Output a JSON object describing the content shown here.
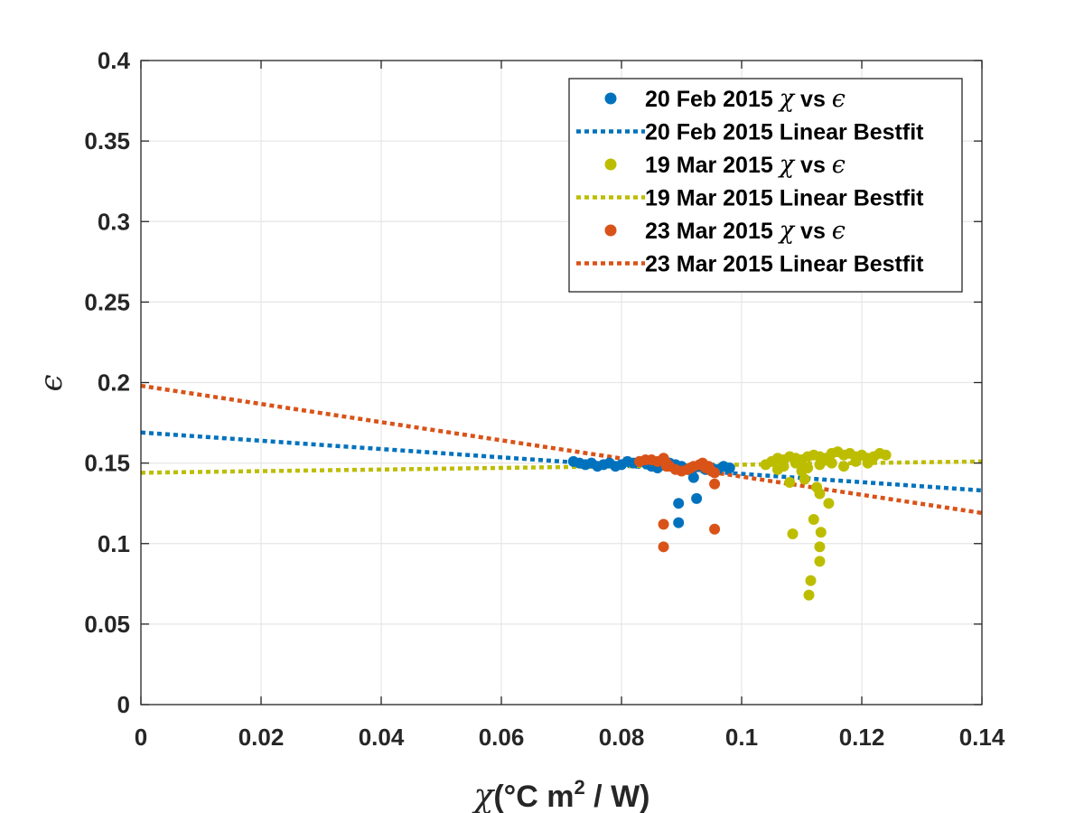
{
  "chart_data": {
    "type": "scatter",
    "title": "",
    "xlabel": {
      "symbol": "χ",
      "text": "(°C m",
      "superscript": "2",
      "text_end": " / W)"
    },
    "ylabel": "ϵ",
    "xlim": [
      0,
      0.14
    ],
    "ylim": [
      0,
      0.4
    ],
    "x_ticks": [
      0,
      0.02,
      0.04,
      0.06,
      0.08,
      0.1,
      0.12,
      0.14
    ],
    "x_tick_labels": [
      "0",
      "0.02",
      "0.04",
      "0.06",
      "0.08",
      "0.1",
      "0.12",
      "0.14"
    ],
    "y_ticks": [
      0,
      0.05,
      0.1,
      0.15,
      0.2,
      0.25,
      0.3,
      0.35,
      0.4
    ],
    "y_tick_labels": [
      "0",
      "0.05",
      "0.1",
      "0.15",
      "0.2",
      "0.25",
      "0.3",
      "0.35",
      "0.4"
    ],
    "grid": true,
    "legend_position": "top-right",
    "legend": [
      {
        "kind": "marker",
        "color": "#0072bd",
        "prefix": "20 Feb 2015 ",
        "symbol": "χ",
        "mid": " vs ",
        "symbol2": "ϵ"
      },
      {
        "kind": "line",
        "color": "#0072bd",
        "label": "20 Feb 2015 Linear Bestfit"
      },
      {
        "kind": "marker",
        "color": "#bdbd00",
        "prefix": "19 Mar 2015 ",
        "symbol": "χ",
        "mid": " vs ",
        "symbol2": "ϵ"
      },
      {
        "kind": "line",
        "color": "#bdbd00",
        "label": "19 Mar 2015 Linear Bestfit"
      },
      {
        "kind": "marker",
        "color": "#d95319",
        "prefix": "23 Mar 2015 ",
        "symbol": "χ",
        "mid": " vs ",
        "symbol2": "ϵ"
      },
      {
        "kind": "line",
        "color": "#d95319",
        "label": "23 Mar 2015 Linear Bestfit"
      }
    ],
    "series": [
      {
        "name": "20 Feb 2015 χ vs ϵ",
        "kind": "scatter",
        "color": "#0072bd",
        "points": [
          [
            0.072,
            0.151
          ],
          [
            0.073,
            0.15
          ],
          [
            0.074,
            0.149
          ],
          [
            0.075,
            0.15
          ],
          [
            0.076,
            0.148
          ],
          [
            0.077,
            0.149
          ],
          [
            0.078,
            0.15
          ],
          [
            0.079,
            0.148
          ],
          [
            0.08,
            0.149
          ],
          [
            0.081,
            0.151
          ],
          [
            0.082,
            0.15
          ],
          [
            0.083,
            0.151
          ],
          [
            0.084,
            0.15
          ],
          [
            0.085,
            0.148
          ],
          [
            0.086,
            0.147
          ],
          [
            0.087,
            0.149
          ],
          [
            0.088,
            0.15
          ],
          [
            0.089,
            0.149
          ],
          [
            0.09,
            0.148
          ],
          [
            0.091,
            0.146
          ],
          [
            0.092,
            0.147
          ],
          [
            0.093,
            0.148
          ],
          [
            0.094,
            0.146
          ],
          [
            0.095,
            0.147
          ],
          [
            0.096,
            0.146
          ],
          [
            0.097,
            0.148
          ],
          [
            0.098,
            0.147
          ],
          [
            0.0895,
            0.125
          ],
          [
            0.0925,
            0.128
          ],
          [
            0.0895,
            0.113
          ],
          [
            0.092,
            0.141
          ]
        ]
      },
      {
        "name": "19 Mar 2015 χ vs ϵ",
        "kind": "scatter",
        "color": "#bdbd00",
        "points": [
          [
            0.104,
            0.149
          ],
          [
            0.105,
            0.151
          ],
          [
            0.106,
            0.153
          ],
          [
            0.107,
            0.152
          ],
          [
            0.108,
            0.154
          ],
          [
            0.109,
            0.153
          ],
          [
            0.11,
            0.152
          ],
          [
            0.111,
            0.154
          ],
          [
            0.112,
            0.155
          ],
          [
            0.113,
            0.154
          ],
          [
            0.114,
            0.153
          ],
          [
            0.115,
            0.156
          ],
          [
            0.116,
            0.157
          ],
          [
            0.117,
            0.155
          ],
          [
            0.118,
            0.156
          ],
          [
            0.119,
            0.154
          ],
          [
            0.12,
            0.155
          ],
          [
            0.121,
            0.153
          ],
          [
            0.122,
            0.154
          ],
          [
            0.123,
            0.156
          ],
          [
            0.124,
            0.155
          ],
          [
            0.107,
            0.148
          ],
          [
            0.109,
            0.15
          ],
          [
            0.111,
            0.147
          ],
          [
            0.113,
            0.149
          ],
          [
            0.115,
            0.15
          ],
          [
            0.117,
            0.148
          ],
          [
            0.119,
            0.151
          ],
          [
            0.121,
            0.15
          ],
          [
            0.106,
            0.146
          ],
          [
            0.11,
            0.145
          ],
          [
            0.108,
            0.138
          ],
          [
            0.1105,
            0.14
          ],
          [
            0.1125,
            0.135
          ],
          [
            0.113,
            0.131
          ],
          [
            0.1145,
            0.125
          ],
          [
            0.112,
            0.115
          ],
          [
            0.1085,
            0.106
          ],
          [
            0.1132,
            0.107
          ],
          [
            0.113,
            0.098
          ],
          [
            0.113,
            0.089
          ],
          [
            0.1115,
            0.077
          ],
          [
            0.1112,
            0.068
          ]
        ]
      },
      {
        "name": "23 Mar 2015 χ vs ϵ",
        "kind": "scatter",
        "color": "#d95319",
        "points": [
          [
            0.083,
            0.151
          ],
          [
            0.084,
            0.152
          ],
          [
            0.085,
            0.152
          ],
          [
            0.086,
            0.151
          ],
          [
            0.087,
            0.153
          ],
          [
            0.0875,
            0.15
          ],
          [
            0.088,
            0.148
          ],
          [
            0.089,
            0.146
          ],
          [
            0.09,
            0.145
          ],
          [
            0.091,
            0.146
          ],
          [
            0.0915,
            0.147
          ],
          [
            0.092,
            0.148
          ],
          [
            0.093,
            0.149
          ],
          [
            0.0935,
            0.15
          ],
          [
            0.094,
            0.147
          ],
          [
            0.0945,
            0.148
          ],
          [
            0.0955,
            0.144
          ],
          [
            0.095,
            0.145
          ],
          [
            0.0875,
            0.148
          ],
          [
            0.0955,
            0.137
          ],
          [
            0.087,
            0.112
          ],
          [
            0.0955,
            0.109
          ],
          [
            0.087,
            0.098
          ]
        ]
      },
      {
        "name": "20 Feb 2015 Linear Bestfit",
        "kind": "line",
        "color": "#0072bd",
        "points": [
          [
            0,
            0.169
          ],
          [
            0.14,
            0.133
          ]
        ]
      },
      {
        "name": "19 Mar 2015 Linear Bestfit",
        "kind": "line",
        "color": "#bdbd00",
        "points": [
          [
            0,
            0.144
          ],
          [
            0.14,
            0.151
          ]
        ]
      },
      {
        "name": "23 Mar 2015 Linear Bestfit",
        "kind": "line",
        "color": "#d95319",
        "points": [
          [
            0,
            0.198
          ],
          [
            0.14,
            0.119
          ]
        ]
      }
    ]
  }
}
